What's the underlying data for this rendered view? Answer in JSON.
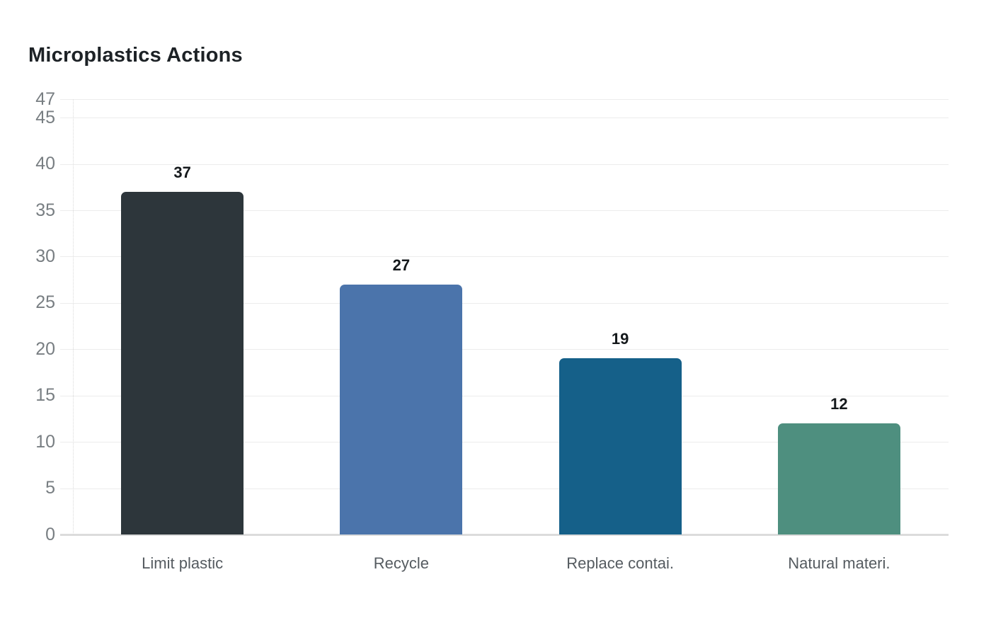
{
  "title": "Microplastics Actions",
  "chart_data": {
    "type": "bar",
    "title": "Microplastics Actions",
    "categories": [
      "Limit plastic",
      "Recycle",
      "Replace contai.",
      "Natural materi."
    ],
    "values": [
      37,
      27,
      19,
      12
    ],
    "bar_colors": [
      "#2d363b",
      "#4b74ab",
      "#156089",
      "#4e8f7f"
    ],
    "xlabel": "",
    "ylabel": "",
    "ylim": [
      0,
      47
    ],
    "yticks": [
      0,
      5,
      10,
      15,
      20,
      25,
      30,
      35,
      40,
      45,
      47
    ],
    "grid": true,
    "legend": "none",
    "background": "#ffffff"
  },
  "colors": {
    "grid": "#ececec",
    "baseline": "#dcdcdc",
    "axis_line": "#d9d9d9",
    "ytick_text": "#787e82",
    "category_text": "#555b60",
    "value_text": "#15191c",
    "title_text": "#1d2226"
  }
}
